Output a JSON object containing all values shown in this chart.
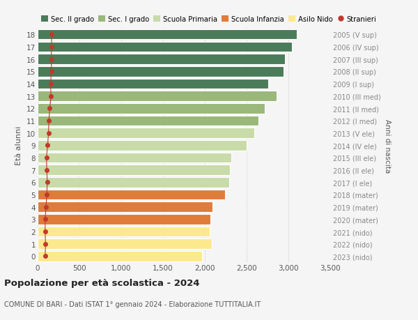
{
  "ages": [
    0,
    1,
    2,
    3,
    4,
    5,
    6,
    7,
    8,
    9,
    10,
    11,
    12,
    13,
    14,
    15,
    16,
    17,
    18
  ],
  "values": [
    1970,
    2080,
    2060,
    2070,
    2090,
    2240,
    2290,
    2300,
    2320,
    2500,
    2590,
    2640,
    2720,
    2860,
    2760,
    2940,
    2960,
    3040,
    3100
  ],
  "stranieri": [
    90,
    95,
    90,
    90,
    100,
    110,
    115,
    110,
    105,
    120,
    130,
    135,
    145,
    160,
    155,
    165,
    165,
    165,
    170
  ],
  "bar_colors": [
    "#fce98e",
    "#fce98e",
    "#fce98e",
    "#e07b39",
    "#e07b39",
    "#e07b39",
    "#c8dba8",
    "#c8dba8",
    "#c8dba8",
    "#c8dba8",
    "#c8dba8",
    "#9ab87a",
    "#9ab87a",
    "#9ab87a",
    "#4a7c59",
    "#4a7c59",
    "#4a7c59",
    "#4a7c59",
    "#4a7c59"
  ],
  "right_labels": [
    "2023 (nido)",
    "2022 (nido)",
    "2021 (nido)",
    "2020 (mater)",
    "2019 (mater)",
    "2018 (mater)",
    "2017 (I ele)",
    "2016 (II ele)",
    "2015 (III ele)",
    "2014 (IV ele)",
    "2013 (V ele)",
    "2012 (I med)",
    "2011 (II med)",
    "2010 (III med)",
    "2009 (I sup)",
    "2008 (II sup)",
    "2007 (III sup)",
    "2006 (IV sup)",
    "2005 (V sup)"
  ],
  "legend_labels": [
    "Sec. II grado",
    "Sec. I grado",
    "Scuola Primaria",
    "Scuola Infanzia",
    "Asilo Nido",
    "Stranieri"
  ],
  "legend_colors": [
    "#4a7c59",
    "#9ab87a",
    "#c8dba8",
    "#e07b39",
    "#fce98e",
    "#c0392b"
  ],
  "title": "Popolazione per età scolastica - 2024",
  "subtitle": "COMUNE DI BARI - Dati ISTAT 1° gennaio 2024 - Elaborazione TUTTITALIA.IT",
  "ylabel": "Età alunni",
  "right_axis_label": "Anni di nascita",
  "xlim": [
    0,
    3500
  ],
  "xticks": [
    0,
    500,
    1000,
    1500,
    2000,
    2500,
    3000,
    3500
  ],
  "xtick_labels": [
    "0",
    "500",
    "1,000",
    "1,500",
    "2,000",
    "2,500",
    "3,000",
    "3,500"
  ],
  "background_color": "#f5f5f5",
  "stranieri_color": "#c0392b",
  "right_label_color": "#888888",
  "tick_label_color": "#555555"
}
